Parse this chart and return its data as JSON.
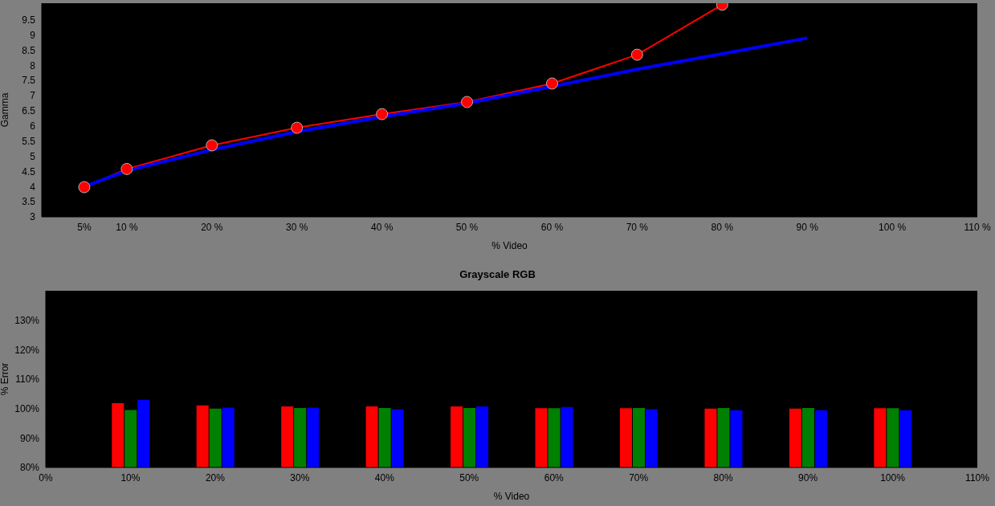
{
  "chart_data": [
    {
      "type": "line",
      "xlabel": "% Video",
      "ylabel": "Gamma",
      "x": [
        5,
        10,
        20,
        30,
        40,
        50,
        60,
        70,
        80,
        90
      ],
      "series": [
        {
          "color": "#ff0000",
          "marker": "circle",
          "values": [
            3.98,
            4.58,
            5.36,
            5.94,
            6.39,
            6.79,
            7.4,
            8.35,
            10.0,
            null
          ]
        },
        {
          "color": "#0000ff",
          "marker": "none",
          "values": [
            4.0,
            4.52,
            5.21,
            5.81,
            6.3,
            6.75,
            7.3,
            7.87,
            8.38,
            8.9
          ]
        }
      ],
      "xlim": [
        0,
        110
      ],
      "xticks": [
        {
          "value": 5,
          "label": "5%"
        },
        {
          "value": 10,
          "label": "10 %"
        },
        {
          "value": 20,
          "label": "20 %"
        },
        {
          "value": 30,
          "label": "30 %"
        },
        {
          "value": 40,
          "label": "40 %"
        },
        {
          "value": 50,
          "label": "50 %"
        },
        {
          "value": 60,
          "label": "60 %"
        },
        {
          "value": 70,
          "label": "70 %"
        },
        {
          "value": 80,
          "label": "80 %"
        },
        {
          "value": 90,
          "label": "90 %"
        },
        {
          "value": 100,
          "label": "100 %"
        },
        {
          "value": 110,
          "label": "110 %"
        }
      ],
      "ylim": [
        3,
        10.05
      ],
      "yticks": [
        3,
        3.5,
        4,
        4.5,
        5,
        5.5,
        6,
        6.5,
        7,
        7.5,
        8,
        8.5,
        9,
        9.5
      ]
    },
    {
      "type": "bar",
      "title": "Grayscale RGB",
      "xlabel": "% Video",
      "ylabel": "% Error",
      "x": [
        10,
        20,
        30,
        40,
        50,
        60,
        70,
        80,
        90,
        100
      ],
      "series": [
        {
          "color": "#ff0000",
          "values": [
            101.8,
            101.1,
            100.7,
            100.7,
            100.7,
            100.1,
            100.1,
            100.0,
            100.0,
            100.1
          ]
        },
        {
          "color": "#008000",
          "values": [
            99.5,
            100.0,
            100.2,
            100.2,
            100.2,
            100.1,
            100.2,
            100.2,
            100.2,
            100.1
          ]
        },
        {
          "color": "#0000ff",
          "values": [
            103.0,
            100.3,
            100.3,
            99.8,
            100.7,
            100.5,
            99.8,
            99.4,
            99.4,
            99.4
          ]
        }
      ],
      "xlim": [
        0,
        110
      ],
      "xticks": [
        {
          "value": 0,
          "label": "0%"
        },
        {
          "value": 10,
          "label": "10%"
        },
        {
          "value": 20,
          "label": "20%"
        },
        {
          "value": 30,
          "label": "30%"
        },
        {
          "value": 40,
          "label": "40%"
        },
        {
          "value": 50,
          "label": "50%"
        },
        {
          "value": 60,
          "label": "60%"
        },
        {
          "value": 70,
          "label": "70%"
        },
        {
          "value": 80,
          "label": "80%"
        },
        {
          "value": 90,
          "label": "90%"
        },
        {
          "value": 100,
          "label": "100%"
        },
        {
          "value": 110,
          "label": "110%"
        }
      ],
      "ylim": [
        80,
        140
      ],
      "yticks": [
        {
          "value": 80,
          "label": "80%"
        },
        {
          "value": 90,
          "label": "90%"
        },
        {
          "value": 100,
          "label": "100%"
        },
        {
          "value": 110,
          "label": "110%"
        },
        {
          "value": 120,
          "label": "120%"
        },
        {
          "value": 130,
          "label": "130%"
        }
      ]
    }
  ]
}
